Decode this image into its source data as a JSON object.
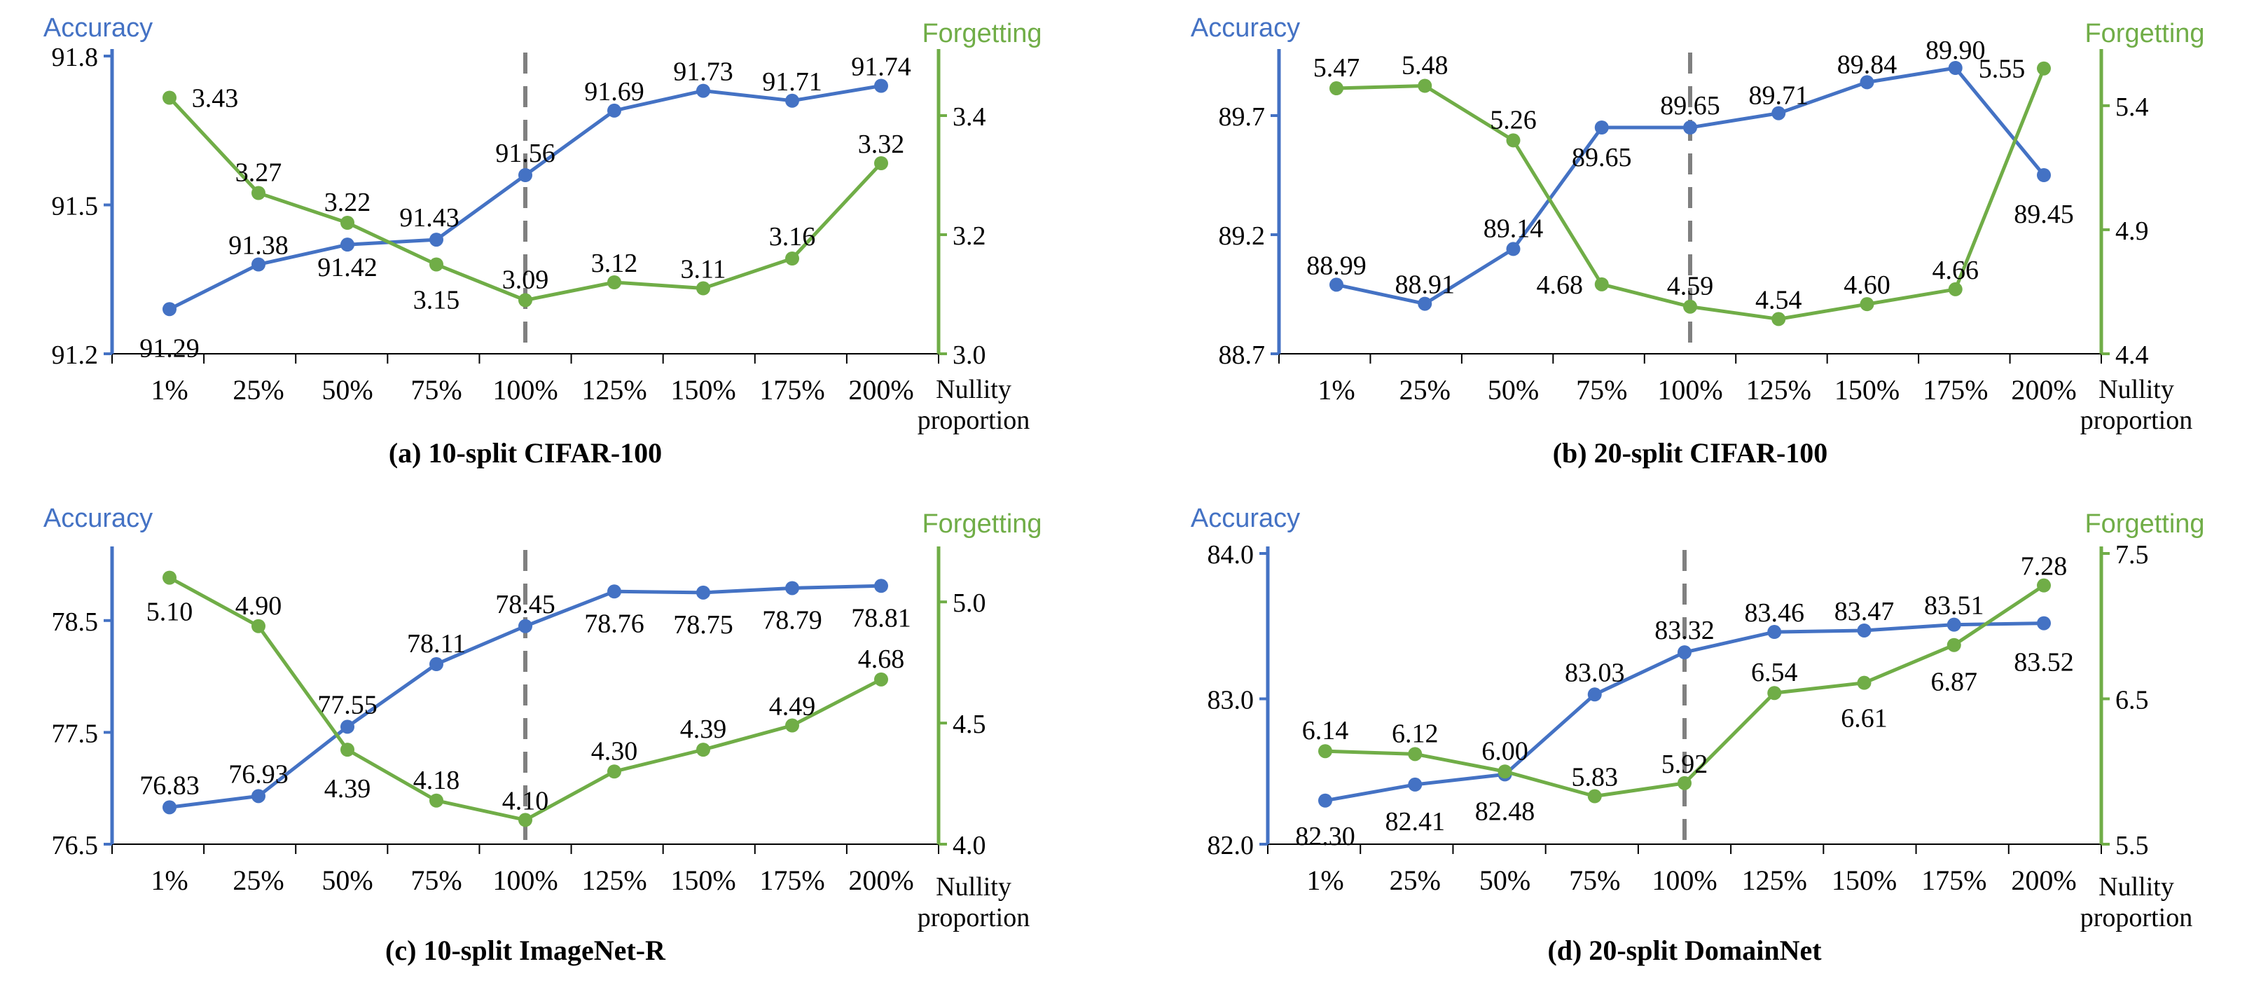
{
  "colors": {
    "accuracy": "#4472C4",
    "forgetting": "#70AD47",
    "text": "#000000",
    "dashed": "#808080"
  },
  "axis_text": {
    "left": "Accuracy",
    "right": "Forgetting",
    "x_line1": "Nullity",
    "x_line2": "proportion"
  },
  "chart_data": [
    {
      "type": "line",
      "title": "(a) 10-split CIFAR-100",
      "categories": [
        "1%",
        "25%",
        "50%",
        "75%",
        "100%",
        "125%",
        "150%",
        "175%",
        "200%"
      ],
      "series": [
        {
          "name": "Accuracy",
          "axis": "left",
          "values": [
            91.29,
            91.38,
            91.42,
            91.43,
            91.56,
            91.69,
            91.73,
            91.71,
            91.74
          ],
          "labels": [
            "91.29",
            "91.38",
            "91.42",
            "91.43",
            "91.56",
            "91.69",
            "91.73",
            "91.71",
            "91.74"
          ]
        },
        {
          "name": "Forgetting",
          "axis": "right",
          "values": [
            3.43,
            3.27,
            3.22,
            3.15,
            3.09,
            3.12,
            3.11,
            3.16,
            3.32
          ],
          "labels": [
            "3.43",
            "3.27",
            "3.22",
            "3.15",
            "3.09",
            "3.12",
            "3.11",
            "3.16",
            "3.32"
          ]
        }
      ],
      "ylim_left": [
        91.2,
        91.8
      ],
      "yticks_left": [
        "91.2",
        "91.5",
        "91.8"
      ],
      "ylim_right": [
        3.0,
        3.5
      ],
      "yticks_right": [
        "3.0",
        "3.2",
        "3.4"
      ],
      "dashed_at": "100%"
    },
    {
      "type": "line",
      "title": "(b) 20-split CIFAR-100",
      "categories": [
        "1%",
        "25%",
        "50%",
        "75%",
        "100%",
        "125%",
        "150%",
        "175%",
        "200%"
      ],
      "series": [
        {
          "name": "Accuracy",
          "axis": "left",
          "values": [
            88.99,
            88.91,
            89.14,
            89.65,
            89.65,
            89.71,
            89.84,
            89.9,
            89.45
          ],
          "labels": [
            "88.99",
            "88.91",
            "89.14",
            "89.65",
            "89.65",
            "89.71",
            "89.84",
            "89.90",
            "89.45"
          ]
        },
        {
          "name": "Forgetting",
          "axis": "right",
          "values": [
            5.47,
            5.48,
            5.26,
            4.68,
            4.59,
            4.54,
            4.6,
            4.66,
            5.55
          ],
          "labels": [
            "5.47",
            "5.48",
            "5.26",
            "4.68",
            "4.59",
            "4.54",
            "4.60",
            "4.66",
            "5.55"
          ]
        }
      ],
      "ylim_left": [
        88.7,
        89.95
      ],
      "yticks_left": [
        "88.7",
        "89.2",
        "89.7"
      ],
      "ylim_right": [
        4.4,
        5.6
      ],
      "yticks_right": [
        "4.4",
        "4.9",
        "5.4"
      ],
      "dashed_at": "100%"
    },
    {
      "type": "line",
      "title": "(c) 10-split ImageNet-R",
      "categories": [
        "1%",
        "25%",
        "50%",
        "75%",
        "100%",
        "125%",
        "150%",
        "175%",
        "200%"
      ],
      "series": [
        {
          "name": "Accuracy",
          "axis": "left",
          "values": [
            76.83,
            76.93,
            77.55,
            78.11,
            78.45,
            78.76,
            78.75,
            78.79,
            78.81
          ],
          "labels": [
            "76.83",
            "76.93",
            "77.55",
            "78.11",
            "78.45",
            "78.76",
            "78.75",
            "78.79",
            "78.81"
          ]
        },
        {
          "name": "Forgetting",
          "axis": "right",
          "values": [
            5.1,
            4.9,
            4.39,
            4.18,
            4.1,
            4.3,
            4.39,
            4.49,
            4.68
          ],
          "labels": [
            "5.10",
            "4.90",
            "4.39",
            "4.18",
            "4.10",
            "4.30",
            "4.39",
            "4.49",
            "4.68"
          ]
        }
      ],
      "ylim_left": [
        76.5,
        79.1
      ],
      "yticks_left": [
        "76.5",
        "77.5",
        "78.5"
      ],
      "ylim_right": [
        4.0,
        5.2
      ],
      "yticks_right": [
        "4.0",
        "4.5",
        "5.0"
      ],
      "dashed_at": "100%"
    },
    {
      "type": "line",
      "title": "(d) 20-split DomainNet",
      "categories": [
        "1%",
        "25%",
        "50%",
        "75%",
        "100%",
        "125%",
        "150%",
        "175%",
        "200%"
      ],
      "series": [
        {
          "name": "Accuracy",
          "axis": "left",
          "values": [
            82.3,
            82.41,
            82.48,
            83.03,
            83.32,
            83.46,
            83.47,
            83.51,
            83.52
          ],
          "labels": [
            "82.30",
            "82.41",
            "82.48",
            "83.03",
            "83.32",
            "83.46",
            "83.47",
            "83.51",
            "83.52"
          ]
        },
        {
          "name": "Forgetting",
          "axis": "right",
          "values": [
            6.14,
            6.12,
            6.0,
            5.83,
            5.92,
            6.54,
            6.61,
            6.87,
            7.28
          ],
          "labels": [
            "6.14",
            "6.12",
            "6.00",
            "5.83",
            "5.92",
            "6.54",
            "6.61",
            "6.87",
            "7.28"
          ]
        }
      ],
      "ylim_left": [
        82.0,
        84.0
      ],
      "yticks_left": [
        "82.0",
        "83.0",
        "84.0"
      ],
      "ylim_right": [
        5.5,
        7.5
      ],
      "yticks_right": [
        "5.5",
        "6.5",
        "7.5"
      ],
      "dashed_at": "100%"
    }
  ]
}
